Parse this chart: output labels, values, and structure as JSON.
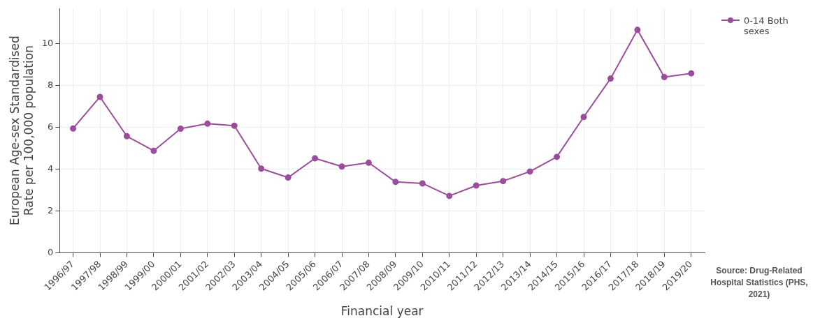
{
  "chart_data": {
    "type": "line",
    "xlabel": "Financial year",
    "ylabel": "European Age-sex Standardised Rate per 100,000 population",
    "categories": [
      "1996/97",
      "1997/98",
      "1998/99",
      "1999/00",
      "2000/01",
      "2001/02",
      "2002/03",
      "2003/04",
      "2004/05",
      "2005/06",
      "2006/07",
      "2007/08",
      "2008/09",
      "2009/10",
      "2010/11",
      "2011/12",
      "2012/13",
      "2013/14",
      "2014/15",
      "2015/16",
      "2016/17",
      "2017/18",
      "2018/19",
      "2019/20"
    ],
    "series": [
      {
        "name": "0-14 Both sexes",
        "color": "#9b4d9b",
        "values": [
          5.95,
          7.46,
          5.58,
          4.88,
          5.94,
          6.18,
          6.08,
          4.03,
          3.6,
          4.52,
          4.13,
          4.31,
          3.39,
          3.32,
          2.72,
          3.22,
          3.43,
          3.89,
          4.59,
          6.5,
          8.34,
          10.67,
          8.41,
          8.59
        ]
      }
    ],
    "ylim": [
      0,
      11.7
    ],
    "yticks": [
      0,
      2,
      4,
      6,
      8,
      10
    ],
    "grid": true,
    "legend": "top right",
    "marker": "circle",
    "line_style": "solid",
    "annotations": [
      "Source: Drug-Related Hospital Statistics (PHS, 2021)"
    ]
  }
}
